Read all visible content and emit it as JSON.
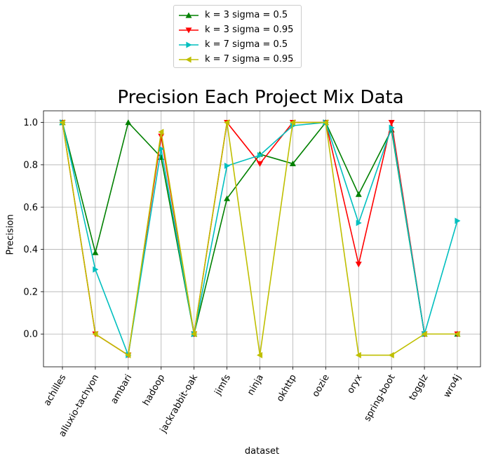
{
  "chart_data": {
    "type": "line",
    "title": "Precision Each Project Mix Data",
    "xlabel": "dataset",
    "ylabel": "Precision",
    "categories": [
      "achilles",
      "alluxio-tachyon",
      "ambari",
      "hadoop",
      "jackrabbit-oak",
      "jimfs",
      "ninja",
      "okhttp",
      "oozie",
      "oryx",
      "spring-boot",
      "togglz",
      "wro4j"
    ],
    "yticks": [
      "0.0",
      "0.2",
      "0.4",
      "0.6",
      "0.8",
      "1.0"
    ],
    "ylim": [
      -0.155,
      1.055
    ],
    "grid": true,
    "legend_position": "top-center",
    "series": [
      {
        "name": "k = 3 sigma = 0.5",
        "color": "#008000",
        "marker": "triangle-up",
        "values": [
          1.0,
          0.385,
          1.0,
          0.835,
          0.0,
          0.64,
          0.85,
          0.805,
          1.0,
          0.66,
          0.965,
          0.0,
          0.0
        ]
      },
      {
        "name": "k = 3 sigma = 0.95",
        "color": "#ff0000",
        "marker": "triangle-down",
        "values": [
          1.0,
          0.0,
          -0.1,
          0.935,
          0.0,
          1.0,
          0.805,
          1.0,
          1.0,
          0.33,
          1.0,
          0.0,
          0.0
        ]
      },
      {
        "name": "k = 7 sigma = 0.5",
        "color": "#00bfbf",
        "marker": "triangle-right",
        "values": [
          1.0,
          0.305,
          -0.1,
          0.875,
          0.0,
          0.795,
          0.845,
          0.985,
          1.0,
          0.525,
          0.975,
          0.0,
          0.535
        ]
      },
      {
        "name": "k = 7 sigma = 0.95",
        "color": "#bfbf00",
        "marker": "triangle-left",
        "values": [
          1.0,
          0.0,
          -0.1,
          0.955,
          0.0,
          1.0,
          -0.1,
          1.0,
          1.0,
          -0.1,
          -0.1,
          0.0,
          0.0
        ]
      }
    ]
  }
}
